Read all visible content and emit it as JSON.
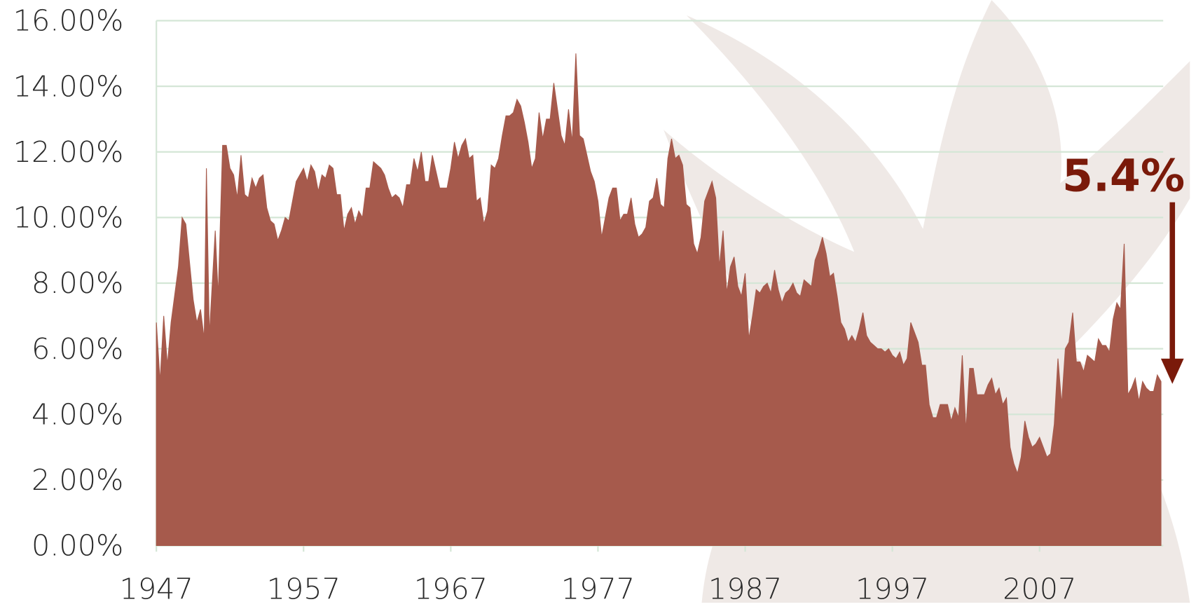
{
  "chart_data": {
    "type": "area",
    "annotation": "5.4%",
    "color": "#a65a4c",
    "annotation_color": "#7a1a0a",
    "grid": true,
    "xlim": [
      1947,
      2015.4
    ],
    "xticks": [
      1947,
      1957,
      1967,
      1977,
      1987,
      1997,
      2007
    ],
    "ylim": [
      0,
      16
    ],
    "yticks": [
      {
        "value": 0,
        "label": "0.00%"
      },
      {
        "value": 2,
        "label": "2.00%"
      },
      {
        "value": 4,
        "label": "4.00%"
      },
      {
        "value": 6,
        "label": "6.00%"
      },
      {
        "value": 8,
        "label": "8.00%"
      },
      {
        "value": 10,
        "label": "10.00%"
      },
      {
        "value": 12,
        "label": "12.00%"
      },
      {
        "value": 14,
        "label": "14.00%"
      },
      {
        "value": 16,
        "label": "16.00%"
      }
    ],
    "x": [
      1947.0,
      1947.25,
      1947.5,
      1947.75,
      1948.0,
      1948.5,
      1948.75,
      1949.0,
      1949.5,
      1949.75,
      1950.0,
      1950.25,
      1950.4,
      1950.6,
      1951.0,
      1951.2,
      1951.5,
      1951.75,
      1952.0,
      1952.25,
      1952.5,
      1952.75,
      1953.0,
      1953.25,
      1953.5,
      1953.75,
      1954.0,
      1954.25,
      1954.5,
      1954.75,
      1955.0,
      1955.25,
      1955.5,
      1955.75,
      1956.0,
      1956.25,
      1956.5,
      1956.75,
      1957.0,
      1957.25,
      1957.5,
      1957.75,
      1958.0,
      1958.25,
      1958.5,
      1958.75,
      1959.0,
      1959.25,
      1959.5,
      1959.75,
      1960.0,
      1960.25,
      1960.5,
      1960.75,
      1961.0,
      1961.25,
      1961.5,
      1961.75,
      1962.0,
      1962.25,
      1962.5,
      1962.75,
      1963.0,
      1963.25,
      1963.5,
      1963.75,
      1964.0,
      1964.25,
      1964.5,
      1964.75,
      1965.0,
      1965.25,
      1965.5,
      1965.75,
      1966.0,
      1966.25,
      1966.5,
      1966.75,
      1967.0,
      1967.25,
      1967.5,
      1967.75,
      1968.0,
      1968.25,
      1968.5,
      1968.75,
      1969.0,
      1969.25,
      1969.5,
      1969.75,
      1970.0,
      1970.25,
      1970.5,
      1970.75,
      1971.0,
      1971.25,
      1971.5,
      1971.75,
      1972.0,
      1972.25,
      1972.5,
      1972.75,
      1973.0,
      1973.25,
      1973.5,
      1973.75,
      1974.0,
      1974.25,
      1974.5,
      1974.75,
      1975.0,
      1975.25,
      1975.5,
      1975.75,
      1976.0,
      1976.25,
      1976.5,
      1976.75,
      1977.0,
      1977.25,
      1977.5,
      1977.75,
      1978.0,
      1978.25,
      1978.5,
      1978.75,
      1979.0,
      1979.25,
      1979.5,
      1979.75,
      1980.0,
      1980.25,
      1980.5,
      1980.75,
      1981.0,
      1981.25,
      1981.5,
      1981.75,
      1982.0,
      1982.25,
      1982.5,
      1982.75,
      1983.0,
      1983.25,
      1983.5,
      1983.75,
      1984.0,
      1984.25,
      1984.5,
      1984.75,
      1985.0,
      1985.25,
      1985.5,
      1985.75,
      1986.0,
      1986.25,
      1986.5,
      1986.75,
      1987.0,
      1987.25,
      1987.5,
      1987.75,
      1988.0,
      1988.25,
      1988.5,
      1988.75,
      1989.0,
      1989.25,
      1989.5,
      1989.75,
      1990.0,
      1990.25,
      1990.5,
      1990.75,
      1991.0,
      1991.25,
      1991.5,
      1991.75,
      1992.0,
      1992.25,
      1992.5,
      1992.75,
      1993.0,
      1993.25,
      1993.5,
      1993.75,
      1994.0,
      1994.25,
      1994.5,
      1994.75,
      1995.0,
      1995.25,
      1995.5,
      1995.75,
      1996.0,
      1996.25,
      1996.5,
      1996.75,
      1997.0,
      1997.25,
      1997.5,
      1997.75,
      1998.0,
      1998.25,
      1998.5,
      1998.75,
      1999.0,
      1999.25,
      1999.5,
      1999.75,
      2000.0,
      2000.25,
      2000.5,
      2000.75,
      2001.0,
      2001.25,
      2001.5,
      2001.75,
      2002.0,
      2002.25,
      2002.5,
      2002.75,
      2003.0,
      2003.25,
      2003.5,
      2003.75,
      2004.0,
      2004.25,
      2004.5,
      2004.75,
      2005.0,
      2005.25,
      2005.5,
      2005.75,
      2006.0,
      2006.25,
      2006.5,
      2006.75,
      2007.0,
      2007.25,
      2007.5,
      2007.75,
      2008.0,
      2008.25,
      2008.5,
      2008.75,
      2009.0,
      2009.25,
      2009.5,
      2009.75,
      2010.0,
      2010.25,
      2010.5,
      2010.75,
      2011.0,
      2011.25,
      2011.5,
      2011.75,
      2012.0,
      2012.25,
      2012.5,
      2012.75,
      2013.0,
      2013.25,
      2013.5,
      2013.75,
      2014.0,
      2014.25,
      2014.5,
      2014.75,
      2015.0,
      2015.25
    ],
    "values": [
      6.8,
      5.0,
      7.0,
      5.5,
      6.8,
      8.5,
      10.0,
      9.8,
      7.5,
      6.8,
      7.2,
      6.3,
      11.5,
      6.4,
      9.6,
      7.6,
      12.2,
      12.2,
      11.5,
      11.3,
      10.6,
      11.9,
      10.7,
      10.6,
      11.2,
      10.9,
      11.2,
      11.3,
      10.3,
      9.9,
      9.8,
      9.3,
      9.6,
      10.0,
      9.9,
      10.5,
      11.1,
      11.3,
      11.5,
      11.1,
      11.6,
      11.4,
      10.8,
      11.3,
      11.2,
      11.6,
      11.5,
      10.7,
      10.7,
      9.6,
      10.1,
      10.3,
      9.8,
      10.2,
      10.0,
      10.9,
      10.9,
      11.7,
      11.6,
      11.5,
      11.3,
      10.9,
      10.6,
      10.7,
      10.6,
      10.3,
      11.0,
      11.0,
      11.8,
      11.4,
      12.0,
      11.1,
      11.1,
      11.9,
      11.4,
      10.9,
      10.9,
      10.9,
      11.5,
      12.3,
      11.8,
      12.2,
      12.4,
      11.8,
      11.9,
      10.5,
      10.6,
      9.8,
      10.2,
      11.6,
      11.5,
      11.8,
      12.5,
      13.1,
      13.1,
      13.2,
      13.6,
      13.4,
      12.9,
      12.3,
      11.5,
      11.8,
      13.2,
      12.4,
      13.0,
      13.0,
      14.1,
      13.3,
      12.5,
      12.2,
      13.3,
      12.3,
      15.0,
      12.5,
      12.4,
      11.9,
      11.4,
      11.1,
      10.5,
      9.4,
      10.0,
      10.6,
      10.9,
      10.9,
      9.9,
      10.1,
      10.1,
      10.6,
      9.8,
      9.4,
      9.5,
      9.7,
      10.5,
      10.6,
      11.2,
      10.4,
      10.3,
      11.8,
      12.4,
      11.8,
      11.9,
      11.6,
      10.4,
      10.3,
      9.2,
      8.9,
      9.4,
      10.5,
      10.8,
      11.1,
      10.6,
      8.5,
      9.6,
      7.7,
      8.5,
      8.8,
      7.9,
      7.6,
      8.3,
      6.3,
      7.0,
      7.8,
      7.7,
      7.9,
      8.0,
      7.7,
      8.4,
      7.8,
      7.4,
      7.7,
      7.8,
      8.0,
      7.7,
      7.6,
      8.1,
      8.0,
      7.9,
      8.7,
      9.0,
      9.4,
      8.9,
      8.2,
      8.3,
      7.6,
      6.8,
      6.6,
      6.2,
      6.4,
      6.2,
      6.6,
      7.1,
      6.4,
      6.2,
      6.1,
      6.0,
      6.0,
      5.9,
      6.0,
      5.8,
      5.7,
      5.9,
      5.5,
      5.7,
      6.8,
      6.5,
      6.2,
      5.5,
      5.5,
      4.3,
      3.9,
      3.9,
      4.3,
      4.3,
      4.3,
      3.8,
      4.2,
      3.9,
      5.8,
      3.5,
      5.4,
      5.4,
      4.6,
      4.6,
      4.6,
      4.9,
      5.1,
      4.6,
      4.8,
      4.3,
      4.5,
      3.0,
      2.5,
      2.2,
      2.7,
      3.8,
      3.3,
      3.0,
      3.1,
      3.3,
      3.0,
      2.7,
      2.8,
      3.7,
      5.7,
      4.3,
      6.0,
      6.2,
      7.1,
      5.6,
      5.6,
      5.3,
      5.8,
      5.7,
      5.6,
      6.3,
      6.1,
      6.1,
      5.9,
      6.9,
      7.4,
      7.2,
      9.2,
      4.6,
      4.8,
      5.1,
      4.4,
      5.0,
      4.8,
      4.7,
      4.7,
      5.2,
      5.0
    ]
  }
}
